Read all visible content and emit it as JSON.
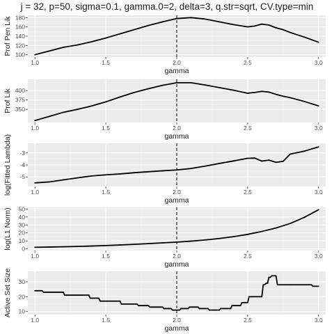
{
  "figure": {
    "title": "j = 32, p=50, sigma=0.1, gamma.0=2, delta=3, q.str=sqrt, CV.type=min",
    "colors": {
      "panel_bg": "#ebebeb",
      "grid_major": "#ffffff",
      "grid_minor": "#f4f4f4",
      "line": "#000000",
      "vline": "#000000"
    }
  },
  "chart_data": [
    {
      "type": "line",
      "xlabel": "gamma",
      "ylabel": "Prof Pen Lik",
      "xlim": [
        0.95,
        3.05
      ],
      "ylim": [
        95,
        185
      ],
      "xticks": [
        1.0,
        1.5,
        2.0,
        2.5,
        3.0
      ],
      "xtick_labels": [
        "1.0",
        "1.5",
        "2.0",
        "2.5",
        "3.0"
      ],
      "yticks": [
        100,
        120,
        140,
        160,
        180
      ],
      "ytick_labels": [
        "100",
        "120",
        "140",
        "160",
        "180"
      ],
      "vline_x": 2.0,
      "x": [
        1.0,
        1.1,
        1.2,
        1.3,
        1.4,
        1.5,
        1.6,
        1.7,
        1.8,
        1.9,
        2.0,
        2.1,
        2.2,
        2.3,
        2.4,
        2.5,
        2.55,
        2.6,
        2.65,
        2.7,
        2.75,
        2.8,
        2.9,
        3.0
      ],
      "y": [
        100,
        108,
        116,
        121,
        128,
        136,
        145,
        154,
        163,
        171,
        178,
        180,
        177,
        171,
        165,
        160,
        162,
        166,
        164,
        158,
        154,
        148,
        138,
        127
      ]
    },
    {
      "type": "line",
      "xlabel": "gamma",
      "ylabel": "Prof Lik",
      "xlim": [
        0.95,
        3.05
      ],
      "ylim": [
        315,
        430
      ],
      "xticks": [
        1.0,
        1.5,
        2.0,
        2.5,
        3.0
      ],
      "xtick_labels": [
        "1.0",
        "1.5",
        "2.0",
        "2.5",
        "3.0"
      ],
      "yticks": [
        350,
        375,
        400
      ],
      "ytick_labels": [
        "350",
        "375",
        "400"
      ],
      "vline_x": 2.0,
      "x": [
        1.0,
        1.1,
        1.2,
        1.3,
        1.4,
        1.5,
        1.6,
        1.7,
        1.8,
        1.9,
        2.0,
        2.1,
        2.2,
        2.3,
        2.4,
        2.5,
        2.55,
        2.6,
        2.65,
        2.7,
        2.75,
        2.8,
        2.9,
        3.0
      ],
      "y": [
        320,
        331,
        342,
        350,
        359,
        370,
        383,
        395,
        405,
        414,
        421,
        421,
        415,
        408,
        401,
        393,
        395,
        398,
        396,
        390,
        385,
        381,
        371,
        359
      ]
    },
    {
      "type": "line",
      "xlabel": "gamma",
      "ylabel": "log(Fitted Lambda)",
      "xlim": [
        0.95,
        3.05
      ],
      "ylim": [
        -5.8,
        -2.2
      ],
      "xticks": [
        1.0,
        1.5,
        2.0,
        2.5,
        3.0
      ],
      "xtick_labels": [
        "1.0",
        "1.5",
        "2.0",
        "2.5",
        "3.0"
      ],
      "yticks": [
        -5,
        -4,
        -3
      ],
      "ytick_labels": [
        "-5",
        "-4",
        "-3"
      ],
      "vline_x": 2.0,
      "x": [
        1.0,
        1.1,
        1.2,
        1.3,
        1.4,
        1.5,
        1.6,
        1.7,
        1.8,
        1.9,
        2.0,
        2.1,
        2.2,
        2.3,
        2.4,
        2.5,
        2.55,
        2.6,
        2.65,
        2.7,
        2.75,
        2.8,
        2.9,
        3.0
      ],
      "y": [
        -5.5,
        -5.42,
        -5.25,
        -5.08,
        -4.92,
        -4.83,
        -4.75,
        -4.65,
        -4.57,
        -4.49,
        -4.42,
        -4.3,
        -4.1,
        -3.88,
        -3.67,
        -3.45,
        -3.43,
        -3.68,
        -3.6,
        -3.78,
        -3.7,
        -3.1,
        -2.85,
        -2.5
      ]
    },
    {
      "type": "line",
      "xlabel": "gamma",
      "ylabel": "log(L1 Norm)",
      "xlim": [
        0.95,
        3.05
      ],
      "ylim": [
        -2,
        52
      ],
      "xticks": [
        1.0,
        1.5,
        2.0,
        2.5,
        3.0
      ],
      "xtick_labels": [
        "1.0",
        "1.5",
        "2.0",
        "2.5",
        "3.0"
      ],
      "yticks": [
        0,
        10,
        20,
        30,
        40,
        50
      ],
      "ytick_labels": [
        "0",
        "10",
        "20",
        "30",
        "40",
        "50"
      ],
      "vline_x": 2.0,
      "x": [
        1.0,
        1.1,
        1.2,
        1.3,
        1.4,
        1.5,
        1.6,
        1.7,
        1.8,
        1.9,
        2.0,
        2.1,
        2.2,
        2.3,
        2.4,
        2.5,
        2.6,
        2.7,
        2.8,
        2.9,
        3.0
      ],
      "y": [
        2,
        2.3,
        2.7,
        3.1,
        3.6,
        4.2,
        4.9,
        5.7,
        6.6,
        7.6,
        8.5,
        9.7,
        11.2,
        13.0,
        15.3,
        18.2,
        21.8,
        26.2,
        31.8,
        39.5,
        49.0
      ]
    },
    {
      "type": "line",
      "xlabel": "gamma",
      "ylabel": "Active Set Size",
      "xlim": [
        0.95,
        3.05
      ],
      "ylim": [
        8,
        37
      ],
      "xticks": [
        1.0,
        1.5,
        2.0,
        2.5,
        3.0
      ],
      "xtick_labels": [
        "1.0",
        "1.5",
        "2.0",
        "2.5",
        "3.0"
      ],
      "yticks": [
        10,
        20,
        30
      ],
      "ytick_labels": [
        "10",
        "20",
        "30"
      ],
      "vline_x": 2.0,
      "x": [
        1.0,
        1.05,
        1.06,
        1.2,
        1.21,
        1.38,
        1.39,
        1.45,
        1.46,
        1.6,
        1.61,
        1.72,
        1.73,
        1.8,
        1.81,
        1.9,
        1.91,
        1.96,
        1.97,
        2.02,
        2.03,
        2.08,
        2.09,
        2.15,
        2.16,
        2.22,
        2.23,
        2.3,
        2.31,
        2.38,
        2.39,
        2.45,
        2.46,
        2.5,
        2.51,
        2.52,
        2.53,
        2.6,
        2.61,
        2.62,
        2.63,
        2.64,
        2.65,
        2.66,
        2.67,
        2.7,
        2.71,
        2.8,
        2.81,
        2.88,
        2.89,
        2.95,
        2.96,
        2.98,
        2.99,
        3.0
      ],
      "y": [
        24,
        24,
        23,
        23,
        21,
        21,
        19,
        19,
        17,
        17,
        15,
        15,
        14,
        14,
        13,
        13,
        12,
        12,
        11,
        11,
        12,
        12,
        13,
        13,
        12,
        12,
        11,
        11,
        12,
        12,
        14,
        14,
        16,
        16,
        20,
        20,
        20,
        20,
        28,
        28,
        29,
        29,
        33,
        33,
        34,
        34,
        28,
        28,
        28,
        28,
        28,
        28,
        27,
        27,
        27,
        27
      ]
    }
  ]
}
